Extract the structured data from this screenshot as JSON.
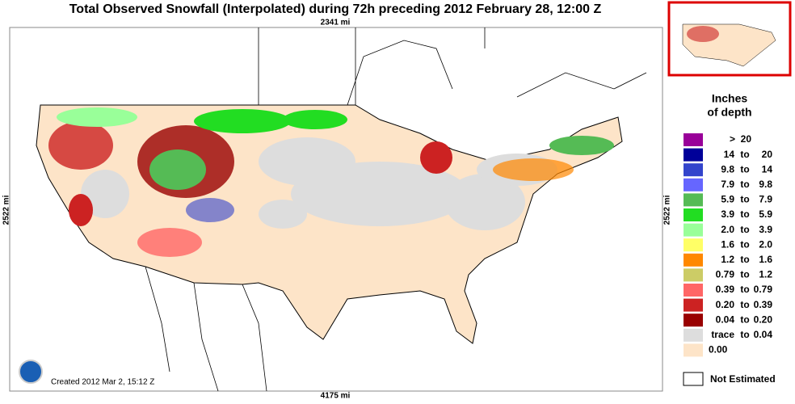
{
  "header": {
    "title": "Total Observed Snowfall (Interpolated) during 72h preceding 2012 February 28, 12:00 Z"
  },
  "map": {
    "scale_labels": {
      "top": "2341 mi",
      "left": "2522 mi",
      "right": "2522 mi",
      "bottom": "4175 mi"
    },
    "credit": "Created 2012 Mar 2, 15:12 Z"
  },
  "legend": {
    "title_lines": [
      "Inches",
      "of depth"
    ],
    "connector": "to",
    "entries": [
      {
        "label": ">  20",
        "color": "#990099"
      },
      {
        "low": "14",
        "high": "20",
        "color": "#000099"
      },
      {
        "low": "9.8",
        "high": "14",
        "color": "#3344cc"
      },
      {
        "low": "7.9",
        "high": "9.8",
        "color": "#6666ff"
      },
      {
        "low": "5.9",
        "high": "7.9",
        "color": "#55bb55"
      },
      {
        "low": "3.9",
        "high": "5.9",
        "color": "#22dd22"
      },
      {
        "low": "2.0",
        "high": "3.9",
        "color": "#99ff99"
      },
      {
        "low": "1.6",
        "high": "2.0",
        "color": "#ffff66"
      },
      {
        "low": "1.2",
        "high": "1.6",
        "color": "#ff8800"
      },
      {
        "low": "0.79",
        "high": "1.2",
        "color": "#cccc66"
      },
      {
        "low": "0.39",
        "high": "0.79",
        "color": "#ff6666"
      },
      {
        "low": "0.20",
        "high": "0.39",
        "color": "#cc2222"
      },
      {
        "low": "0.04",
        "high": "0.20",
        "color": "#990000"
      },
      {
        "low": "trace",
        "high": "0.04",
        "color": "#dddddd"
      },
      {
        "label": "0.00",
        "color": "#fde4c8"
      }
    ],
    "not_estimated": "Not Estimated"
  }
}
